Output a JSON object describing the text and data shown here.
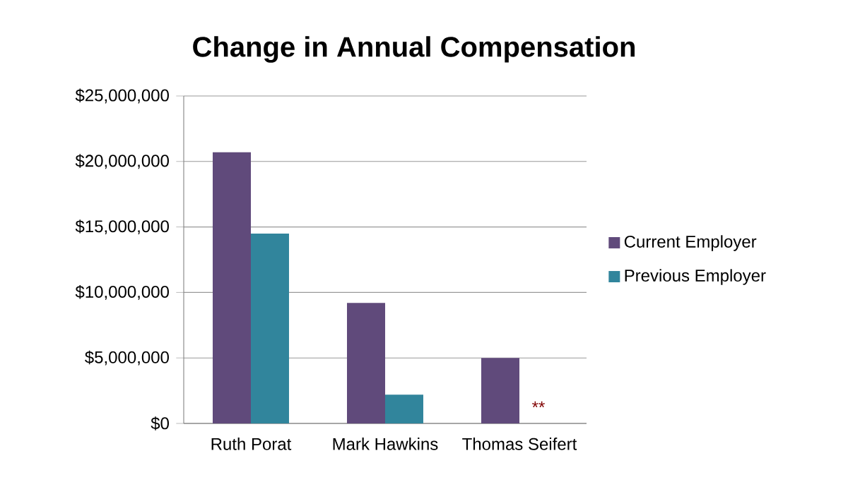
{
  "chart_data": {
    "type": "bar",
    "title": "Change in Annual Compensation",
    "categories": [
      "Ruth Porat",
      "Mark Hawkins",
      "Thomas Seifert"
    ],
    "series": [
      {
        "name": "Current Employer",
        "color": "#604a7b",
        "values": [
          20700000,
          9200000,
          5000000
        ]
      },
      {
        "name": "Previous Employer",
        "color": "#31859c",
        "values": [
          14500000,
          2200000,
          null
        ]
      }
    ],
    "ylim": [
      0,
      25000000
    ],
    "yticks": [
      {
        "value": 0,
        "label": "$0"
      },
      {
        "value": 5000000,
        "label": "$5,000,000"
      },
      {
        "value": 10000000,
        "label": "$10,000,000"
      },
      {
        "value": 15000000,
        "label": "$15,000,000"
      },
      {
        "value": 20000000,
        "label": "$20,000,000"
      },
      {
        "value": 25000000,
        "label": "$25,000,000"
      }
    ],
    "grid": "y",
    "legend": "right",
    "annotations": [
      {
        "text": "**",
        "x": "Thomas Seifert",
        "y": 0
      }
    ]
  }
}
